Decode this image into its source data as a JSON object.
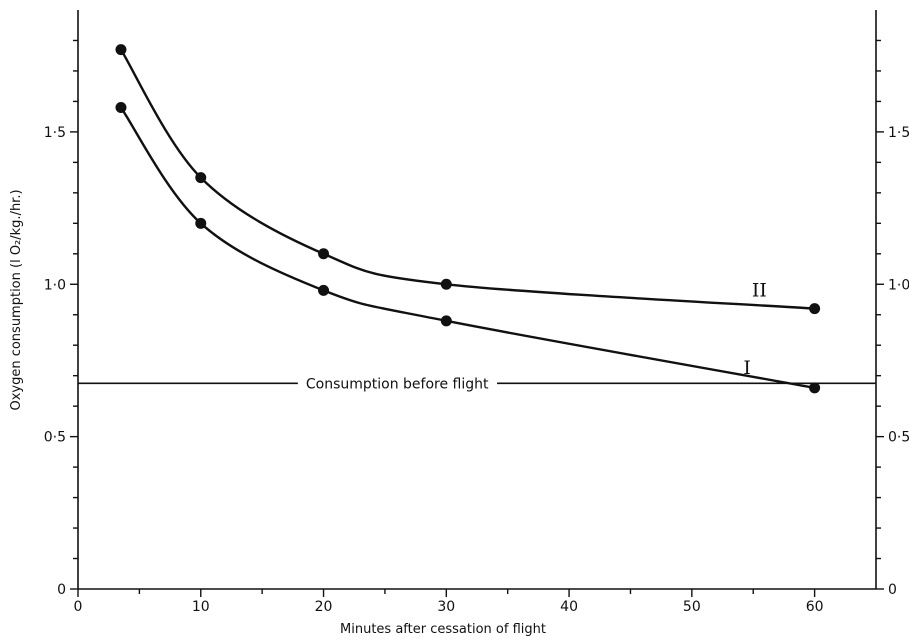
{
  "chart_data": {
    "type": "line",
    "title": "",
    "xlabel": "Minutes after cessation of flight",
    "ylabel": "Oxygen consumption (l O₂/kg./hr.)",
    "xlim": [
      0,
      65
    ],
    "ylim": [
      0,
      1.9
    ],
    "x_ticks": [
      0,
      10,
      20,
      30,
      40,
      50,
      60
    ],
    "x_tick_labels": [
      "0",
      "10",
      "20",
      "30",
      "40",
      "50",
      "60"
    ],
    "x_minor_ticks": [
      5,
      15,
      25,
      35,
      45,
      55
    ],
    "y_ticks": [
      0,
      0.5,
      1.0,
      1.5
    ],
    "y_tick_labels": [
      "0",
      "0·5",
      "1·0",
      "1·5"
    ],
    "y_minor_ticks": [
      0.1,
      0.2,
      0.3,
      0.4,
      0.6,
      0.7,
      0.8,
      0.9,
      1.1,
      1.2,
      1.3,
      1.4,
      1.6,
      1.7,
      1.8
    ],
    "right_axis_tick_labels": [
      "0",
      "0·5",
      "1·0",
      "1·5"
    ],
    "grid": false,
    "legend": "none",
    "series": [
      {
        "name": "II",
        "x": [
          3.5,
          10,
          20,
          30,
          60
        ],
        "y": [
          1.77,
          1.35,
          1.1,
          1.0,
          0.92
        ]
      },
      {
        "name": "I",
        "x": [
          3.5,
          10,
          20,
          30,
          60
        ],
        "y": [
          1.58,
          1.2,
          0.98,
          0.88,
          0.66
        ]
      }
    ],
    "reference_line": {
      "y": 0.675,
      "label": "Consumption before flight"
    }
  }
}
